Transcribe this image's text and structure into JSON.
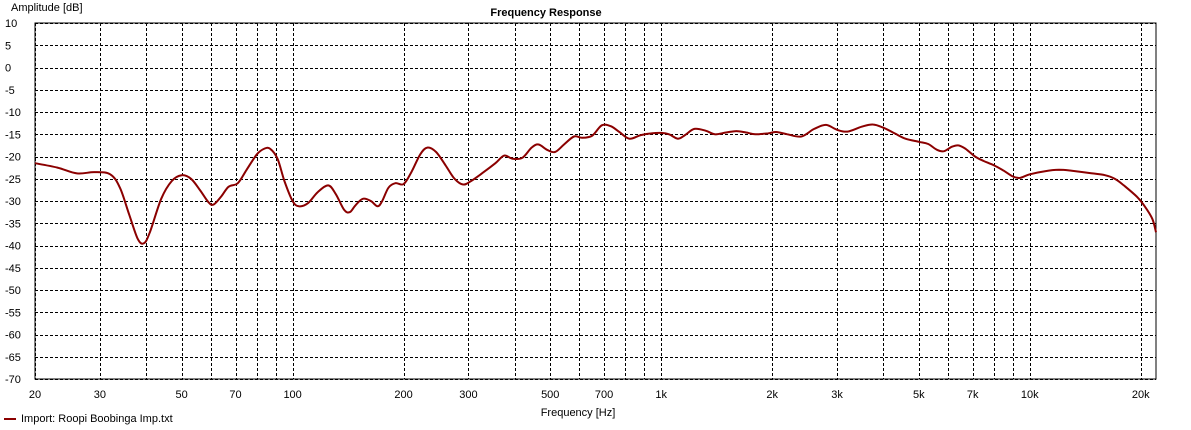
{
  "chart_data": {
    "type": "line",
    "title": "Frequency Response",
    "xlabel": "Frequency [Hz]",
    "ylabel": "Amplitude [dB]",
    "xscale": "log",
    "xlim": [
      20,
      22000
    ],
    "ylim": [
      -70,
      10
    ],
    "grid": true,
    "legend_position": "bottom-left",
    "x_ticks": [
      {
        "value": 20,
        "label": "20"
      },
      {
        "value": 30,
        "label": "30"
      },
      {
        "value": 50,
        "label": "50"
      },
      {
        "value": 70,
        "label": "70"
      },
      {
        "value": 100,
        "label": "100"
      },
      {
        "value": 200,
        "label": "200"
      },
      {
        "value": 300,
        "label": "300"
      },
      {
        "value": 500,
        "label": "500"
      },
      {
        "value": 700,
        "label": "700"
      },
      {
        "value": 1000,
        "label": "1k"
      },
      {
        "value": 2000,
        "label": "2k"
      },
      {
        "value": 3000,
        "label": "3k"
      },
      {
        "value": 5000,
        "label": "5k"
      },
      {
        "value": 7000,
        "label": "7k"
      },
      {
        "value": 10000,
        "label": "10k"
      },
      {
        "value": 20000,
        "label": "20k"
      }
    ],
    "x_grid_values": [
      20,
      30,
      40,
      50,
      60,
      70,
      80,
      90,
      100,
      200,
      300,
      400,
      500,
      600,
      700,
      800,
      900,
      1000,
      2000,
      3000,
      4000,
      5000,
      6000,
      7000,
      8000,
      9000,
      10000,
      20000
    ],
    "y_ticks": [
      10,
      5,
      0,
      -5,
      -10,
      -15,
      -20,
      -25,
      -30,
      -35,
      -40,
      -45,
      -50,
      -55,
      -60,
      -65,
      -70
    ],
    "series": [
      {
        "name": "Import: Roopi Boobinga Imp.txt",
        "color": "#8b0000",
        "points": [
          [
            20,
            -21.5
          ],
          [
            23,
            -22.5
          ],
          [
            26,
            -23.8
          ],
          [
            29,
            -23.5
          ],
          [
            32,
            -24
          ],
          [
            34,
            -27
          ],
          [
            36,
            -33
          ],
          [
            38,
            -38.5
          ],
          [
            39.5,
            -39.5
          ],
          [
            41,
            -37
          ],
          [
            44,
            -29.5
          ],
          [
            47,
            -25.5
          ],
          [
            50,
            -24.2
          ],
          [
            53,
            -25
          ],
          [
            56,
            -27.5
          ],
          [
            59,
            -30.2
          ],
          [
            61,
            -30.8
          ],
          [
            64,
            -29
          ],
          [
            67,
            -26.8
          ],
          [
            71,
            -26
          ],
          [
            75,
            -23
          ],
          [
            80,
            -19.5
          ],
          [
            84,
            -18.2
          ],
          [
            87,
            -18.3
          ],
          [
            91,
            -20.5
          ],
          [
            95,
            -25.5
          ],
          [
            100,
            -30
          ],
          [
            104,
            -31.2
          ],
          [
            110,
            -30.5
          ],
          [
            117,
            -28
          ],
          [
            125,
            -26.5
          ],
          [
            131,
            -28.5
          ],
          [
            138,
            -32
          ],
          [
            143,
            -32.5
          ],
          [
            148,
            -31
          ],
          [
            155,
            -29.5
          ],
          [
            163,
            -30
          ],
          [
            170,
            -31.2
          ],
          [
            175,
            -30
          ],
          [
            182,
            -27
          ],
          [
            190,
            -26
          ],
          [
            200,
            -26.2
          ],
          [
            210,
            -23.5
          ],
          [
            222,
            -19.5
          ],
          [
            232,
            -18
          ],
          [
            245,
            -19
          ],
          [
            260,
            -22
          ],
          [
            275,
            -25
          ],
          [
            290,
            -26.3
          ],
          [
            305,
            -25.5
          ],
          [
            330,
            -23.5
          ],
          [
            355,
            -21.5
          ],
          [
            375,
            -19.8
          ],
          [
            395,
            -20.5
          ],
          [
            420,
            -20.3
          ],
          [
            445,
            -18
          ],
          [
            465,
            -17.3
          ],
          [
            490,
            -18.5
          ],
          [
            515,
            -19
          ],
          [
            545,
            -17.3
          ],
          [
            580,
            -15.5
          ],
          [
            610,
            -15.8
          ],
          [
            650,
            -15.3
          ],
          [
            690,
            -13
          ],
          [
            730,
            -13.2
          ],
          [
            770,
            -14.5
          ],
          [
            820,
            -16
          ],
          [
            880,
            -15.2
          ],
          [
            940,
            -14.8
          ],
          [
            1000,
            -14.7
          ],
          [
            1050,
            -15
          ],
          [
            1110,
            -16
          ],
          [
            1160,
            -15.2
          ],
          [
            1230,
            -13.8
          ],
          [
            1320,
            -14.2
          ],
          [
            1400,
            -15
          ],
          [
            1500,
            -14.6
          ],
          [
            1600,
            -14.3
          ],
          [
            1700,
            -14.6
          ],
          [
            1800,
            -15
          ],
          [
            1950,
            -14.8
          ],
          [
            2050,
            -14.5
          ],
          [
            2200,
            -15
          ],
          [
            2400,
            -15.5
          ],
          [
            2600,
            -13.8
          ],
          [
            2800,
            -12.9
          ],
          [
            3000,
            -14
          ],
          [
            3200,
            -14.4
          ],
          [
            3500,
            -13.3
          ],
          [
            3750,
            -12.8
          ],
          [
            4000,
            -13.5
          ],
          [
            4300,
            -14.8
          ],
          [
            4600,
            -16
          ],
          [
            5000,
            -16.7
          ],
          [
            5300,
            -17.2
          ],
          [
            5600,
            -18.5
          ],
          [
            5850,
            -18.8
          ],
          [
            6150,
            -17.8
          ],
          [
            6400,
            -17.5
          ],
          [
            6700,
            -18.3
          ],
          [
            7100,
            -20
          ],
          [
            7500,
            -21
          ],
          [
            8000,
            -22
          ],
          [
            8500,
            -23.2
          ],
          [
            9000,
            -24.5
          ],
          [
            9400,
            -24.8
          ],
          [
            10000,
            -24
          ],
          [
            11000,
            -23.3
          ],
          [
            12000,
            -23
          ],
          [
            13000,
            -23.2
          ],
          [
            14500,
            -23.7
          ],
          [
            16000,
            -24.2
          ],
          [
            17000,
            -25
          ],
          [
            18000,
            -26.5
          ],
          [
            19500,
            -29
          ],
          [
            20500,
            -31.2
          ],
          [
            21500,
            -34
          ],
          [
            22000,
            -37
          ]
        ]
      }
    ]
  },
  "legend": {
    "label": "Import: Roopi Boobinga Imp.txt"
  }
}
